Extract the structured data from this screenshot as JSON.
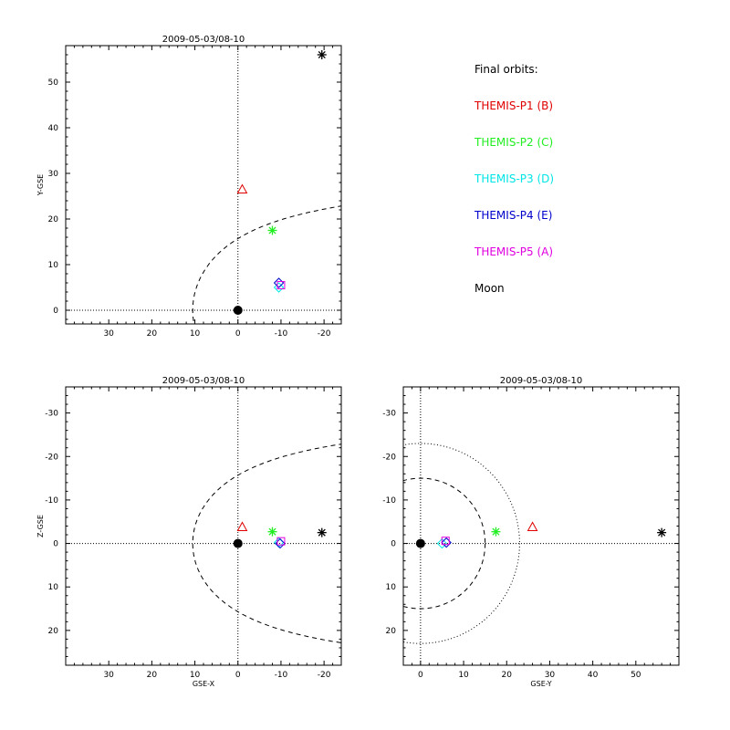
{
  "colors": {
    "THEMIS-P1 (B)": "#e00000",
    "THEMIS-P2 (C)": "#22ee22",
    "THEMIS-P3 (D)": "#00e5e5",
    "THEMIS-P4 (E)": "#0000cc",
    "THEMIS-P5 (A)": "#e000e0",
    "Moon": "#000000"
  },
  "legend": {
    "heading": "Final orbits:",
    "entries": [
      {
        "label": "THEMIS-P1 (B)",
        "color": "#e00000",
        "symbol": "triangle"
      },
      {
        "label": "THEMIS-P2 (C)",
        "color": "#22ee22",
        "symbol": "asterisk"
      },
      {
        "label": "THEMIS-P3 (D)",
        "color": "#00e5e5",
        "symbol": "diamond"
      },
      {
        "label": "THEMIS-P4 (E)",
        "color": "#0000cc",
        "symbol": "diamond"
      },
      {
        "label": "THEMIS-P5 (A)",
        "color": "#e000e0",
        "symbol": "square"
      },
      {
        "label": "Moon",
        "color": "#000000",
        "symbol": "asterisk"
      }
    ]
  },
  "chart_data": [
    {
      "type": "scatter",
      "id": "xy",
      "title": "2009-05-03/08-10",
      "xlabel": "",
      "ylabel": "Y-GSE",
      "xlim": [
        40,
        -24
      ],
      "ylim": [
        58,
        -3
      ],
      "xticks": [
        30,
        20,
        10,
        0,
        -10,
        -20
      ],
      "yticks": [
        0,
        10,
        20,
        30,
        40,
        50
      ],
      "earth": [
        0,
        0
      ],
      "points": [
        {
          "name": "THEMIS-P1 (B)",
          "x": -1,
          "y": 26.5
        },
        {
          "name": "THEMIS-P2 (C)",
          "x": -8,
          "y": 17.5
        },
        {
          "name": "THEMIS-P3 (D)",
          "x": -9.5,
          "y": 5
        },
        {
          "name": "THEMIS-P4 (E)",
          "x": -9.5,
          "y": 6
        },
        {
          "name": "THEMIS-P5 (A)",
          "x": -10,
          "y": 5.5
        },
        {
          "name": "Moon",
          "x": -19.5,
          "y": 56
        }
      ],
      "boundaries": {
        "magnetopause": {
          "r0": 10.5,
          "alpha": 0.58,
          "style": "dashed"
        },
        "bow_shock": {
          "r0": 14.2,
          "eps": 0.95,
          "style": "dotted"
        }
      },
      "grid": "zero-lines"
    },
    {
      "type": "scatter",
      "id": "xz",
      "title": "2009-05-03/08-10",
      "xlabel": "GSE-X",
      "ylabel": "Z-GSE",
      "xlim": [
        40,
        -24
      ],
      "ylim": [
        -36,
        28
      ],
      "xticks": [
        30,
        20,
        10,
        0,
        -10,
        -20
      ],
      "yticks": [
        20,
        10,
        0,
        -10,
        -20,
        -30
      ],
      "earth": [
        0,
        0
      ],
      "points": [
        {
          "name": "THEMIS-P1 (B)",
          "x": -1,
          "y": -3.8
        },
        {
          "name": "THEMIS-P2 (C)",
          "x": -8,
          "y": -2.7
        },
        {
          "name": "THEMIS-P3 (D)",
          "x": -9.5,
          "y": -0.2
        },
        {
          "name": "THEMIS-P4 (E)",
          "x": -9.8,
          "y": 0
        },
        {
          "name": "THEMIS-P5 (A)",
          "x": -10,
          "y": -0.5
        },
        {
          "name": "Moon",
          "x": -19.5,
          "y": -2.5
        }
      ],
      "boundaries": {
        "magnetopause": {
          "r0": 10.5,
          "alpha": 0.58,
          "style": "dashed"
        },
        "bow_shock": {
          "r0": 14.2,
          "eps": 0.95,
          "style": "dotted"
        }
      },
      "grid": "zero-lines"
    },
    {
      "type": "scatter",
      "id": "yz",
      "title": "2009-05-03/08-10",
      "xlabel": "GSE-Y",
      "ylabel": "",
      "xlim": [
        -4,
        60
      ],
      "ylim": [
        -36,
        28
      ],
      "xticks": [
        0,
        10,
        20,
        30,
        40,
        50
      ],
      "yticks": [
        20,
        10,
        0,
        -10,
        -20,
        -30
      ],
      "earth": [
        0,
        0
      ],
      "points": [
        {
          "name": "THEMIS-P1 (B)",
          "x": 26,
          "y": -3.8
        },
        {
          "name": "THEMIS-P2 (C)",
          "x": 17.5,
          "y": -2.7
        },
        {
          "name": "THEMIS-P3 (D)",
          "x": 5,
          "y": 0
        },
        {
          "name": "THEMIS-P4 (E)",
          "x": 6,
          "y": -0.2
        },
        {
          "name": "THEMIS-P5 (A)",
          "x": 5.8,
          "y": -0.6
        },
        {
          "name": "Moon",
          "x": 56,
          "y": -2.5
        }
      ],
      "circles": [
        {
          "r": 15,
          "style": "dashed"
        },
        {
          "r": 23,
          "style": "dotted"
        }
      ],
      "grid": "zero-lines"
    }
  ]
}
